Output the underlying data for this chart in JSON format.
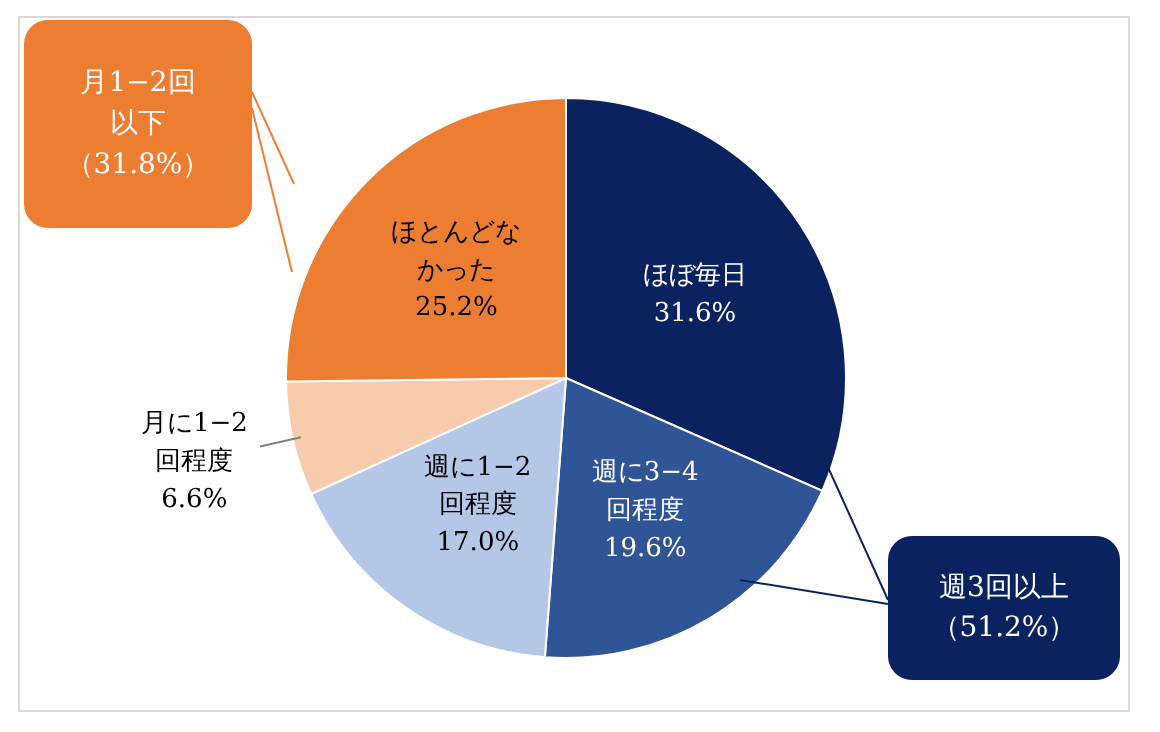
{
  "chart_data": {
    "type": "pie",
    "categories": [
      "ほぼ毎日",
      "週に3−4回程度",
      "週に1−2回程度",
      "月に1−2回程度",
      "ほとんどなかった"
    ],
    "values": [
      31.6,
      19.6,
      17.0,
      6.6,
      25.2
    ],
    "value_labels": [
      "31.6%",
      "19.6%",
      "17.0%",
      "6.6%",
      "25.2%"
    ],
    "colors": [
      "#0b2260",
      "#2f5597",
      "#b4c7e7",
      "#f8cbad",
      "#ed7d31"
    ],
    "annotations": [
      "月1−2回以下（31.8%）",
      "週3回以上（51.2%）"
    ],
    "legend": false
  }
}
